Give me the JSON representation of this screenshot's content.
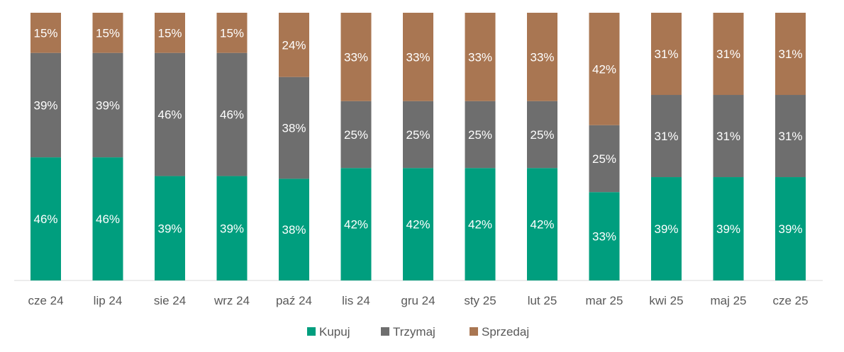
{
  "chart_data": {
    "type": "bar",
    "stacked": true,
    "normalized": true,
    "categories": [
      "cze 24",
      "lip 24",
      "sie 24",
      "wrz 24",
      "paź 24",
      "lis 24",
      "gru 24",
      "sty 25",
      "lut 25",
      "mar 25",
      "kwi 25",
      "maj 25",
      "cze 25"
    ],
    "series": [
      {
        "name": "Kupuj",
        "color": "#009E7E",
        "values": [
          46,
          46,
          39,
          39,
          38,
          42,
          42,
          42,
          42,
          33,
          39,
          39,
          39
        ]
      },
      {
        "name": "Trzymaj",
        "color": "#6E6E6E",
        "values": [
          39,
          39,
          46,
          46,
          38,
          25,
          25,
          25,
          25,
          25,
          31,
          31,
          31
        ]
      },
      {
        "name": "Sprzedaj",
        "color": "#A97652",
        "values": [
          15,
          15,
          15,
          15,
          24,
          33,
          33,
          33,
          33,
          42,
          31,
          31,
          31
        ]
      }
    ],
    "value_suffix": "%",
    "ylim": [
      0,
      100
    ],
    "grid": false,
    "legend_position": "bottom-center",
    "title": "",
    "xlabel": "",
    "ylabel": ""
  }
}
